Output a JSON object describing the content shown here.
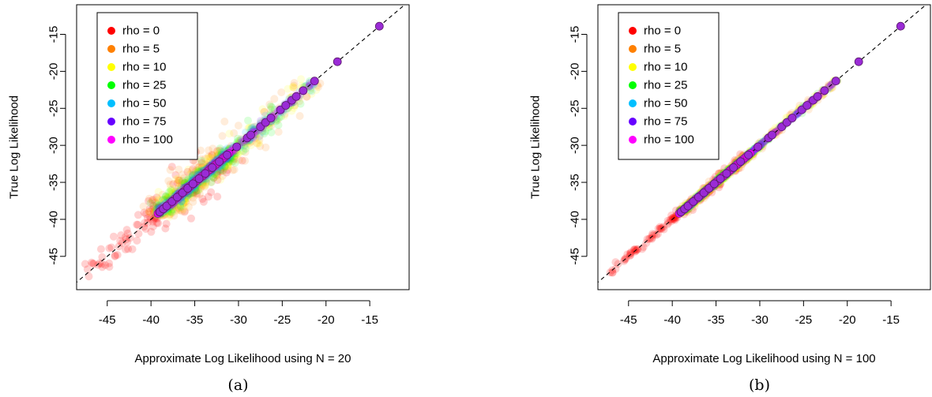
{
  "chart_data": [
    {
      "type": "scatter",
      "panel_label": "(a)",
      "xlabel": "Approximate Log Likelihood using N = 20",
      "ylabel": "True Log Likelihood",
      "xlim": [
        -48.5,
        -10.5
      ],
      "ylim": [
        -49.5,
        -11
      ],
      "xticks": [
        -45,
        -40,
        -35,
        -30,
        -25,
        -20,
        -15
      ],
      "yticks": [
        -45,
        -40,
        -35,
        -30,
        -25,
        -20,
        -15
      ],
      "grid": false,
      "legend_position": "top-left",
      "reference_line": "y = x (dashed)",
      "noise_scale": 1.0,
      "series": [
        {
          "name": "rho = 0",
          "color": "#FF0000"
        },
        {
          "name": "rho = 5",
          "color": "#FF8000"
        },
        {
          "name": "rho = 10",
          "color": "#FFFF00"
        },
        {
          "name": "rho = 25",
          "color": "#00FF00"
        },
        {
          "name": "rho = 50",
          "color": "#00BFFF"
        },
        {
          "name": "rho = 75",
          "color": "#6600FF"
        },
        {
          "name": "rho = 100",
          "color": "#FF00FF"
        }
      ],
      "highlight_points": [
        -39.0,
        -38.6,
        -38.2,
        -37.6,
        -37.0,
        -36.4,
        -35.8,
        -35.2,
        -34.5,
        -33.8,
        -33.0,
        -32.2,
        -31.3,
        -30.2,
        -29.0,
        -28.6,
        -27.5,
        -26.9,
        -26.3,
        -25.2,
        -24.6,
        -23.9,
        -23.4,
        -22.6,
        -21.3,
        -18.7,
        -13.9
      ]
    },
    {
      "type": "scatter",
      "panel_label": "(b)",
      "xlabel": "Approximate Log Likelihood using N = 100",
      "ylabel": "True Log Likelihood",
      "xlim": [
        -48.5,
        -10.5
      ],
      "ylim": [
        -49.5,
        -11
      ],
      "xticks": [
        -45,
        -40,
        -35,
        -30,
        -25,
        -20,
        -15
      ],
      "yticks": [
        -45,
        -40,
        -35,
        -30,
        -25,
        -20,
        -15
      ],
      "grid": false,
      "legend_position": "top-left",
      "reference_line": "y = x (dashed)",
      "noise_scale": 0.25,
      "series": [
        {
          "name": "rho = 0",
          "color": "#FF0000"
        },
        {
          "name": "rho = 5",
          "color": "#FF8000"
        },
        {
          "name": "rho = 10",
          "color": "#FFFF00"
        },
        {
          "name": "rho = 25",
          "color": "#00FF00"
        },
        {
          "name": "rho = 50",
          "color": "#00BFFF"
        },
        {
          "name": "rho = 75",
          "color": "#6600FF"
        },
        {
          "name": "rho = 100",
          "color": "#FF00FF"
        }
      ],
      "highlight_points": [
        -39.0,
        -38.6,
        -38.2,
        -37.6,
        -37.0,
        -36.4,
        -35.8,
        -35.2,
        -34.5,
        -33.8,
        -33.0,
        -32.2,
        -31.3,
        -30.2,
        -29.0,
        -28.6,
        -27.5,
        -26.9,
        -26.3,
        -25.2,
        -24.6,
        -23.9,
        -23.4,
        -22.6,
        -21.3,
        -18.7,
        -13.9
      ]
    }
  ]
}
